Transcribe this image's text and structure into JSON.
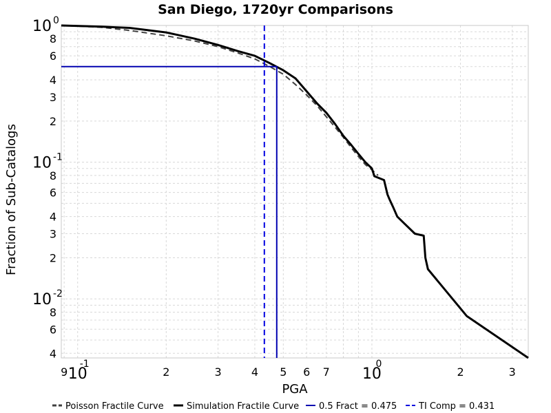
{
  "chart_data": {
    "type": "line",
    "title": "San Diego, 1720yr Comparisons",
    "xlabel": "PGA",
    "ylabel": "Fraction of Sub-Catalogs",
    "xscale": "log",
    "yscale": "log",
    "xlim": [
      0.088,
      3.4
    ],
    "ylim": [
      0.0037,
      1.0
    ],
    "grid": true,
    "legend_position": "bottom",
    "x_ticks": [
      {
        "major": "10",
        "exp": "-1"
      },
      {
        "label": "9"
      },
      {
        "label": "2"
      },
      {
        "label": "3"
      },
      {
        "label": "4"
      },
      {
        "label": "5"
      },
      {
        "label": "6"
      },
      {
        "label": "7"
      },
      {
        "major": "10",
        "exp": "0"
      },
      {
        "label": "2"
      },
      {
        "label": "3"
      }
    ],
    "y_ticks": [
      {
        "major": "10",
        "exp": "0"
      },
      {
        "label": "8"
      },
      {
        "label": "6"
      },
      {
        "label": "4"
      },
      {
        "label": "3"
      },
      {
        "label": "2"
      },
      {
        "major": "10",
        "exp": "-1"
      },
      {
        "label": "8"
      },
      {
        "label": "6"
      },
      {
        "label": "4"
      },
      {
        "label": "3"
      },
      {
        "label": "2"
      },
      {
        "major": "10",
        "exp": "-2"
      },
      {
        "label": "8"
      },
      {
        "label": "6"
      },
      {
        "label": "4"
      }
    ],
    "series": [
      {
        "name": "Poisson Fractile Curve",
        "color": "#404040",
        "style": "dashed",
        "x": [
          0.088,
          0.12,
          0.15,
          0.2,
          0.25,
          0.3,
          0.35,
          0.4,
          0.45,
          0.5,
          0.55,
          0.6,
          0.65,
          0.7,
          0.75,
          0.8,
          0.85,
          0.9,
          0.95,
          1.0,
          1.05
        ],
        "y": [
          1.0,
          0.97,
          0.92,
          0.84,
          0.77,
          0.7,
          0.63,
          0.57,
          0.5,
          0.44,
          0.37,
          0.31,
          0.26,
          0.215,
          0.18,
          0.152,
          0.128,
          0.11,
          0.096,
          0.088,
          0.08
        ]
      },
      {
        "name": "Simulation Fractile Curve",
        "color": "#000000",
        "style": "solid",
        "x": [
          0.088,
          0.12,
          0.15,
          0.2,
          0.25,
          0.3,
          0.35,
          0.4,
          0.45,
          0.5,
          0.55,
          0.6,
          0.65,
          0.7,
          0.75,
          0.8,
          0.85,
          0.9,
          0.95,
          1.0,
          1.02,
          1.1,
          1.13,
          1.15,
          1.18,
          1.22,
          1.3,
          1.4,
          1.5,
          1.52,
          1.55,
          2.1,
          3.4
        ],
        "y": [
          1.0,
          0.98,
          0.96,
          0.89,
          0.8,
          0.72,
          0.65,
          0.6,
          0.53,
          0.47,
          0.41,
          0.33,
          0.27,
          0.23,
          0.19,
          0.156,
          0.134,
          0.115,
          0.1,
          0.09,
          0.079,
          0.074,
          0.058,
          0.053,
          0.047,
          0.04,
          0.035,
          0.03,
          0.029,
          0.02,
          0.0165,
          0.0075,
          0.0037
        ]
      },
      {
        "name": "0.5 Fract = 0.475",
        "color": "#0000b0",
        "style": "solid",
        "x": [
          0.088,
          0.475,
          0.475
        ],
        "y": [
          0.5,
          0.5,
          0.0037
        ]
      },
      {
        "name": "TI Comp = 0.431",
        "color": "#0000e0",
        "style": "dashed",
        "x": [
          0.431,
          0.431
        ],
        "y": [
          1.0,
          0.0037
        ]
      }
    ]
  }
}
